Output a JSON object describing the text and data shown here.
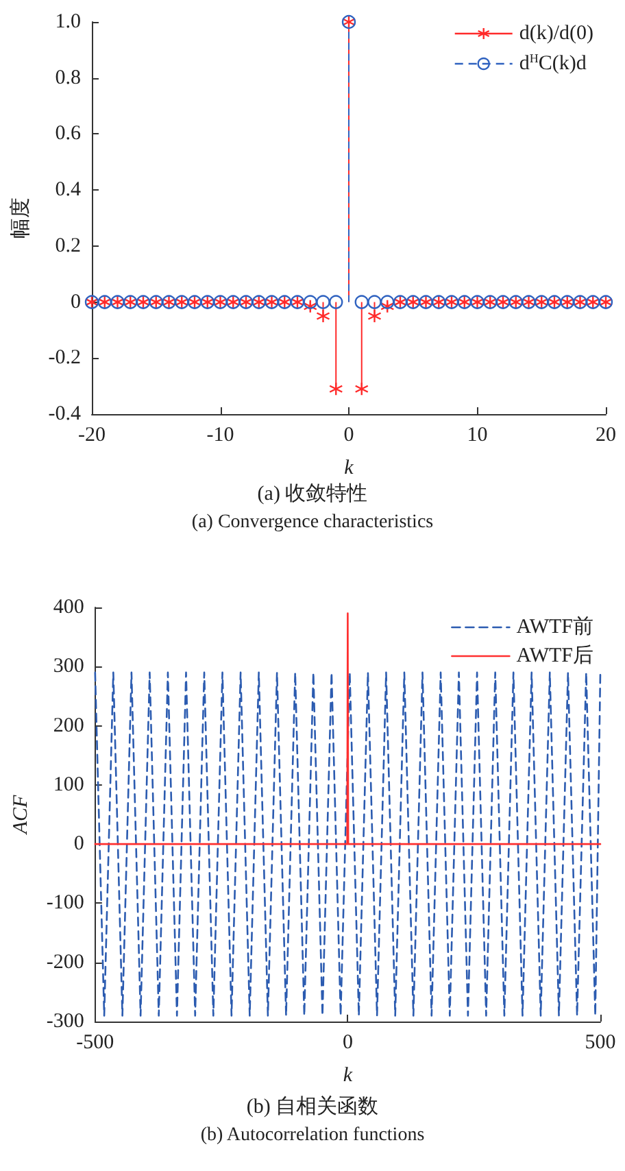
{
  "chart_data": [
    {
      "type": "lollipop",
      "title": "(a) 收敛特性",
      "subtitle": "(a) Convergence characteristics",
      "xlabel": "k",
      "ylabel": "幅度",
      "x": [
        -20,
        -19,
        -18,
        -17,
        -16,
        -15,
        -14,
        -13,
        -12,
        -11,
        -10,
        -9,
        -8,
        -7,
        -6,
        -5,
        -4,
        -3,
        -2,
        -1,
        0,
        1,
        2,
        3,
        4,
        5,
        6,
        7,
        8,
        9,
        10,
        11,
        12,
        13,
        14,
        15,
        16,
        17,
        18,
        19,
        20
      ],
      "series": [
        {
          "name": "d(k)/d(0)",
          "color": "#ff2a2a",
          "marker": "cross",
          "line_style": "solid",
          "values": [
            0,
            0,
            0,
            0,
            0,
            0,
            0,
            0,
            0,
            0,
            0,
            0,
            0,
            0,
            0,
            0,
            0,
            -0.015,
            -0.05,
            -0.31,
            1,
            -0.31,
            -0.05,
            -0.015,
            0,
            0,
            0,
            0,
            0,
            0,
            0,
            0,
            0,
            0,
            0,
            0,
            0,
            0,
            0,
            0,
            0
          ]
        },
        {
          "name": "d$^{H}$C(k)d",
          "color": "#2f62c0",
          "marker": "circle",
          "line_style": "dashed",
          "values": [
            0,
            0,
            0,
            0,
            0,
            0,
            0,
            0,
            0,
            0,
            0,
            0,
            0,
            0,
            0,
            0,
            0,
            0,
            0,
            0,
            1,
            0,
            0,
            0,
            0,
            0,
            0,
            0,
            0,
            0,
            0,
            0,
            0,
            0,
            0,
            0,
            0,
            0,
            0,
            0,
            0
          ]
        }
      ],
      "xlim": [
        -20,
        20
      ],
      "xticks": [
        -20,
        -10,
        0,
        10,
        20
      ],
      "ylim": [
        -0.4,
        1
      ],
      "yticks": [
        {
          "value": -0.4,
          "label": "-0.4"
        },
        {
          "value": -0.2,
          "label": "-0.2"
        },
        {
          "value": 0,
          "label": "0"
        },
        {
          "value": 0.2,
          "label": "0.2"
        },
        {
          "value": 0.4,
          "label": "0.4"
        },
        {
          "value": 0.6,
          "label": "0.6"
        },
        {
          "value": 0.8,
          "label": "0.8"
        },
        {
          "value": 1,
          "label": "1.0"
        }
      ],
      "grid": false,
      "legend": "top right"
    },
    {
      "type": "line",
      "title": "(b) 自相关函数",
      "subtitle": "(b) Autocorrelation functions",
      "xlabel": "k",
      "ylabel": "ACF",
      "series": [
        {
          "name": "AWTF前",
          "color": "#2b5bb0",
          "line_style": "dashed",
          "x": [
            -500,
            -482,
            -464,
            -446,
            -428,
            -410,
            -392,
            -374,
            -356,
            -338,
            -320,
            -302,
            -284,
            -266,
            -248,
            -230,
            -212,
            -194,
            -176,
            -158,
            -140,
            -122,
            -104,
            -86,
            -68,
            -50,
            -32,
            -14,
            4,
            22,
            40,
            58,
            76,
            94,
            112,
            130,
            148,
            166,
            184,
            202,
            220,
            238,
            256,
            274,
            292,
            310,
            328,
            346,
            364,
            382,
            400,
            418,
            436,
            454,
            472,
            490,
            500
          ],
          "values": [
            290,
            -290,
            290,
            -290,
            290,
            -290,
            290,
            -290,
            290,
            -290,
            290,
            -290,
            290,
            -290,
            290,
            -290,
            290,
            -290,
            290,
            -290,
            290,
            -290,
            290,
            -290,
            290,
            -290,
            290,
            -290,
            290,
            -290,
            290,
            -290,
            290,
            -290,
            290,
            -290,
            290,
            -290,
            290,
            -290,
            290,
            -290,
            290,
            -290,
            290,
            -290,
            290,
            -290,
            290,
            -290,
            290,
            -290,
            290,
            -290,
            290,
            -290,
            290
          ]
        },
        {
          "name": "AWTF后",
          "color": "#ff3030",
          "line_style": "solid",
          "x": [
            -500,
            -1,
            0,
            1,
            500
          ],
          "values": [
            0,
            0,
            390,
            0,
            0
          ]
        }
      ],
      "xlim": [
        -500,
        500
      ],
      "xticks": [
        -500,
        0,
        500
      ],
      "ylim": [
        -300,
        400
      ],
      "yticks": [
        -300,
        -200,
        -100,
        0,
        100,
        200,
        300,
        400
      ],
      "grid": false,
      "legend": "top right",
      "marker": "none"
    }
  ]
}
